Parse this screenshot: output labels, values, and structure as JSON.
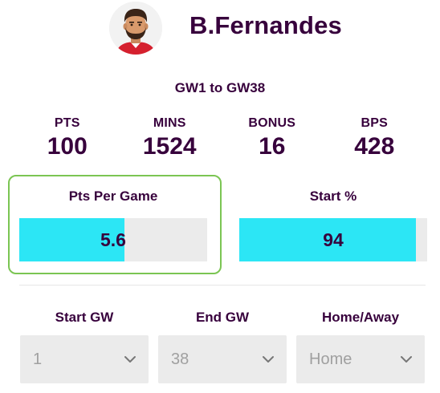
{
  "player": {
    "name": "B.Fernandes"
  },
  "range": "GW1 to GW38",
  "stats": [
    {
      "label": "PTS",
      "value": "100"
    },
    {
      "label": "MINS",
      "value": "1524"
    },
    {
      "label": "BONUS",
      "value": "16"
    },
    {
      "label": "BPS",
      "value": "428"
    }
  ],
  "metrics": {
    "ppg": {
      "label": "Pts Per Game",
      "value": "5.6",
      "fill_fraction": 0.56
    },
    "start": {
      "label": "Start %",
      "value": "94",
      "fill_fraction": 0.94
    }
  },
  "filters": {
    "start_gw": {
      "label": "Start GW",
      "value": "1"
    },
    "end_gw": {
      "label": "End GW",
      "value": "38"
    },
    "home_away": {
      "label": "Home/Away",
      "value": "Home"
    }
  },
  "colors": {
    "text": "#37003c",
    "bar_fill": "#2ce6f5",
    "bar_track": "#ebebeb",
    "highlight_border": "#7bc553"
  },
  "icons": {
    "avatar": "player-avatar",
    "dropdown": "chevron-down-icon"
  }
}
